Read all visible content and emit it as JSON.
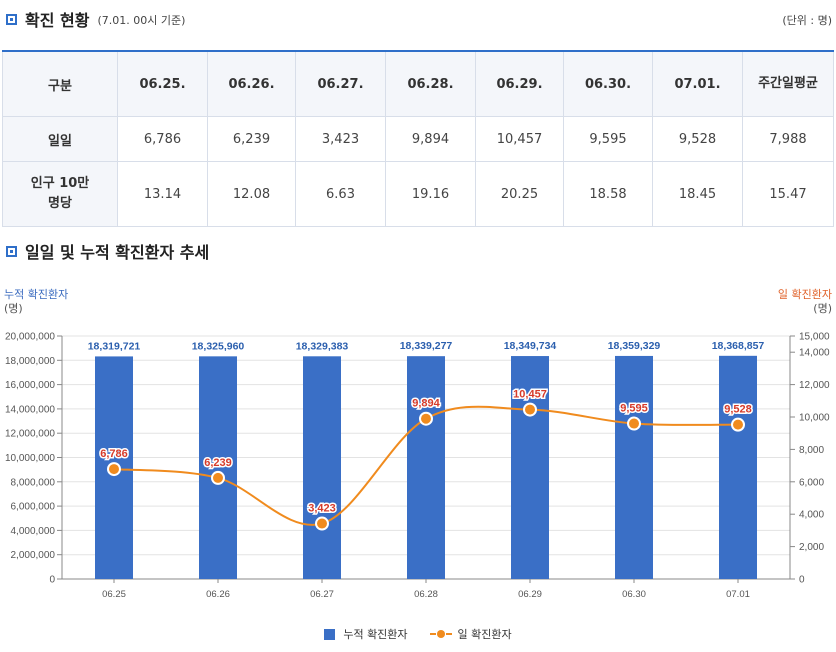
{
  "section1": {
    "title": "확진 현황",
    "note": "(7.01. 00시 기준)",
    "unit": "(단위 : 명)"
  },
  "table": {
    "headers": [
      "구분",
      "06.25.",
      "06.26.",
      "06.27.",
      "06.28.",
      "06.29.",
      "06.30.",
      "07.01.",
      "주간일평균"
    ],
    "rows": [
      {
        "label": "일일",
        "values": [
          "6,786",
          "6,239",
          "3,423",
          "9,894",
          "10,457",
          "9,595",
          "9,528",
          "7,988"
        ]
      },
      {
        "label": "인구 10만명당",
        "values": [
          "13.14",
          "12.08",
          "6.63",
          "19.16",
          "20.25",
          "18.58",
          "18.45",
          "15.47"
        ]
      }
    ]
  },
  "section2": {
    "title": "일일 및 누적 확진환자 추세"
  },
  "axis": {
    "left_title": "누적 확진환자",
    "left_unit": "(명)",
    "right_title": "일 확진환자",
    "right_unit": "(명)"
  },
  "legend": {
    "bar": "누적 확진환자",
    "line": "일 확진환자"
  },
  "colors": {
    "bar": "#3a6fc6",
    "line": "#f08b1e",
    "point_label": "#d63b2a",
    "bar_label": "#2b5fae",
    "accent": "#2f6fc9"
  },
  "chart_data": {
    "type": "bar+line",
    "categories": [
      "06.25",
      "06.26",
      "06.27",
      "06.28",
      "06.29",
      "06.30",
      "07.01"
    ],
    "series": [
      {
        "name": "누적 확진환자",
        "type": "bar",
        "axis": "left",
        "values": [
          18319721,
          18325960,
          18329383,
          18339277,
          18349734,
          18359329,
          18368857
        ],
        "labels": [
          "18,319,721",
          "18,325,960",
          "18,329,383",
          "18,339,277",
          "18,349,734",
          "18,359,329",
          "18,368,857"
        ]
      },
      {
        "name": "일 확진환자",
        "type": "line",
        "axis": "right",
        "values": [
          6786,
          6239,
          3423,
          9894,
          10457,
          9595,
          9528
        ],
        "labels": [
          "6,786",
          "6,239",
          "3,423",
          "9,894",
          "10,457",
          "9,595",
          "9,528"
        ]
      }
    ],
    "left_axis": {
      "min": 0,
      "max": 20000000,
      "ticks": [
        "0",
        "2,000,000",
        "4,000,000",
        "6,000,000",
        "8,000,000",
        "10,000,000",
        "12,000,000",
        "14,000,000",
        "16,000,000",
        "18,000,000",
        "20,000,000"
      ]
    },
    "right_axis": {
      "min": 0,
      "max": 15000,
      "ticks": [
        "0",
        "2,000",
        "4,000",
        "6,000",
        "8,000",
        "10,000",
        "12,000",
        "14,000",
        "15,000"
      ],
      "tick_values": [
        0,
        2000,
        4000,
        6000,
        8000,
        10000,
        12000,
        14000,
        15000
      ]
    }
  }
}
